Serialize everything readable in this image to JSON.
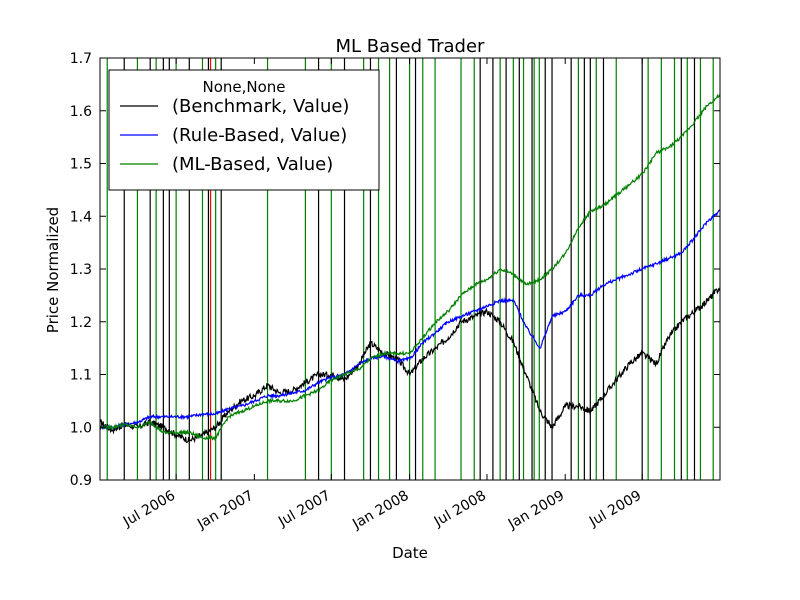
{
  "chart_data": {
    "type": "line",
    "title": "ML Based Trader",
    "xlabel": "Date",
    "ylabel": "Price Normalized",
    "xlim": [
      "2006-01-03",
      "2009-12-31"
    ],
    "ylim": [
      0.9,
      1.7
    ],
    "yticks": [
      "0.9",
      "1.0",
      "1.1",
      "1.2",
      "1.3",
      "1.4",
      "1.5",
      "1.6",
      "1.7"
    ],
    "xticks": [
      {
        "date": "2006-07-01",
        "label": "Jul 2006"
      },
      {
        "date": "2007-01-01",
        "label": "Jan 2007"
      },
      {
        "date": "2007-07-01",
        "label": "Jul 2007"
      },
      {
        "date": "2008-01-01",
        "label": "Jan 2008"
      },
      {
        "date": "2008-07-01",
        "label": "Jul 2008"
      },
      {
        "date": "2009-01-01",
        "label": "Jan 2009"
      },
      {
        "date": "2009-07-01",
        "label": "Jul 2009"
      }
    ],
    "grid": false,
    "legend": {
      "title": "None,None",
      "placement": "upper-left"
    },
    "series": [
      {
        "name": "(Benchmark, Value)",
        "color": "#000000",
        "points": [
          [
            "2006-01-03",
            1.01
          ],
          [
            "2006-02-01",
            0.995
          ],
          [
            "2006-03-01",
            1.005
          ],
          [
            "2006-04-03",
            1.0
          ],
          [
            "2006-05-01",
            1.01
          ],
          [
            "2006-06-01",
            1.0
          ],
          [
            "2006-07-03",
            0.985
          ],
          [
            "2006-08-01",
            0.975
          ],
          [
            "2006-09-01",
            0.985
          ],
          [
            "2006-10-02",
            1.0
          ],
          [
            "2006-11-01",
            1.03
          ],
          [
            "2006-12-01",
            1.05
          ],
          [
            "2007-01-02",
            1.06
          ],
          [
            "2007-02-01",
            1.08
          ],
          [
            "2007-03-01",
            1.065
          ],
          [
            "2007-04-02",
            1.07
          ],
          [
            "2007-05-01",
            1.085
          ],
          [
            "2007-06-01",
            1.1
          ],
          [
            "2007-07-02",
            1.1
          ],
          [
            "2007-08-01",
            1.09
          ],
          [
            "2007-09-04",
            1.12
          ],
          [
            "2007-10-01",
            1.16
          ],
          [
            "2007-11-01",
            1.14
          ],
          [
            "2007-12-03",
            1.13
          ],
          [
            "2008-01-02",
            1.1
          ],
          [
            "2008-02-01",
            1.13
          ],
          [
            "2008-03-03",
            1.15
          ],
          [
            "2008-04-01",
            1.17
          ],
          [
            "2008-05-01",
            1.2
          ],
          [
            "2008-06-02",
            1.21
          ],
          [
            "2008-07-01",
            1.22
          ],
          [
            "2008-08-01",
            1.2
          ],
          [
            "2008-09-02",
            1.16
          ],
          [
            "2008-10-01",
            1.1
          ],
          [
            "2008-11-03",
            1.03
          ],
          [
            "2008-12-01",
            1.0
          ],
          [
            "2009-01-02",
            1.04
          ],
          [
            "2009-02-02",
            1.04
          ],
          [
            "2009-03-02",
            1.03
          ],
          [
            "2009-04-01",
            1.06
          ],
          [
            "2009-05-01",
            1.09
          ],
          [
            "2009-06-01",
            1.12
          ],
          [
            "2009-07-01",
            1.14
          ],
          [
            "2009-08-03",
            1.12
          ],
          [
            "2009-09-01",
            1.17
          ],
          [
            "2009-10-01",
            1.2
          ],
          [
            "2009-11-02",
            1.22
          ],
          [
            "2009-12-01",
            1.24
          ],
          [
            "2009-12-31",
            1.265
          ]
        ]
      },
      {
        "name": "(Rule-Based, Value)",
        "color": "#0000ff",
        "points": [
          [
            "2006-01-03",
            1.0
          ],
          [
            "2006-02-01",
            1.0
          ],
          [
            "2006-03-01",
            1.005
          ],
          [
            "2006-04-03",
            1.01
          ],
          [
            "2006-05-01",
            1.02
          ],
          [
            "2006-06-01",
            1.02
          ],
          [
            "2006-07-03",
            1.02
          ],
          [
            "2006-08-01",
            1.02
          ],
          [
            "2006-09-01",
            1.025
          ],
          [
            "2006-10-02",
            1.025
          ],
          [
            "2006-11-01",
            1.035
          ],
          [
            "2006-12-01",
            1.04
          ],
          [
            "2007-01-02",
            1.05
          ],
          [
            "2007-02-01",
            1.06
          ],
          [
            "2007-03-01",
            1.06
          ],
          [
            "2007-04-02",
            1.065
          ],
          [
            "2007-05-01",
            1.07
          ],
          [
            "2007-06-01",
            1.085
          ],
          [
            "2007-07-02",
            1.095
          ],
          [
            "2007-08-01",
            1.1
          ],
          [
            "2007-09-04",
            1.12
          ],
          [
            "2007-10-01",
            1.13
          ],
          [
            "2007-11-01",
            1.135
          ],
          [
            "2007-12-03",
            1.125
          ],
          [
            "2008-01-02",
            1.13
          ],
          [
            "2008-02-01",
            1.16
          ],
          [
            "2008-03-03",
            1.18
          ],
          [
            "2008-04-01",
            1.2
          ],
          [
            "2008-05-01",
            1.21
          ],
          [
            "2008-06-02",
            1.22
          ],
          [
            "2008-07-01",
            1.23
          ],
          [
            "2008-08-01",
            1.24
          ],
          [
            "2008-09-02",
            1.24
          ],
          [
            "2008-10-01",
            1.19
          ],
          [
            "2008-11-03",
            1.15
          ],
          [
            "2008-12-01",
            1.21
          ],
          [
            "2009-01-02",
            1.22
          ],
          [
            "2009-02-02",
            1.25
          ],
          [
            "2009-03-02",
            1.25
          ],
          [
            "2009-04-01",
            1.27
          ],
          [
            "2009-05-01",
            1.28
          ],
          [
            "2009-06-01",
            1.29
          ],
          [
            "2009-07-01",
            1.3
          ],
          [
            "2009-08-03",
            1.31
          ],
          [
            "2009-09-01",
            1.32
          ],
          [
            "2009-10-01",
            1.33
          ],
          [
            "2009-11-02",
            1.36
          ],
          [
            "2009-12-01",
            1.39
          ],
          [
            "2009-12-31",
            1.41
          ]
        ]
      },
      {
        "name": "(ML-Based, Value)",
        "color": "#008000",
        "points": [
          [
            "2006-01-03",
            1.0
          ],
          [
            "2006-02-01",
            1.0
          ],
          [
            "2006-03-01",
            1.005
          ],
          [
            "2006-04-03",
            1.0
          ],
          [
            "2006-05-01",
            1.01
          ],
          [
            "2006-06-01",
            0.99
          ],
          [
            "2006-07-03",
            0.99
          ],
          [
            "2006-08-01",
            0.99
          ],
          [
            "2006-09-01",
            0.98
          ],
          [
            "2006-10-02",
            0.98
          ],
          [
            "2006-11-01",
            1.02
          ],
          [
            "2006-12-01",
            1.03
          ],
          [
            "2007-01-02",
            1.04
          ],
          [
            "2007-02-01",
            1.05
          ],
          [
            "2007-03-01",
            1.05
          ],
          [
            "2007-04-02",
            1.05
          ],
          [
            "2007-05-01",
            1.06
          ],
          [
            "2007-06-01",
            1.07
          ],
          [
            "2007-07-02",
            1.09
          ],
          [
            "2007-08-01",
            1.1
          ],
          [
            "2007-09-04",
            1.11
          ],
          [
            "2007-10-01",
            1.13
          ],
          [
            "2007-11-01",
            1.14
          ],
          [
            "2007-12-03",
            1.14
          ],
          [
            "2008-01-02",
            1.14
          ],
          [
            "2008-02-01",
            1.17
          ],
          [
            "2008-03-03",
            1.2
          ],
          [
            "2008-04-01",
            1.22
          ],
          [
            "2008-05-01",
            1.25
          ],
          [
            "2008-06-02",
            1.27
          ],
          [
            "2008-07-01",
            1.28
          ],
          [
            "2008-08-01",
            1.3
          ],
          [
            "2008-09-02",
            1.29
          ],
          [
            "2008-10-01",
            1.27
          ],
          [
            "2008-11-03",
            1.28
          ],
          [
            "2008-12-01",
            1.3
          ],
          [
            "2009-01-02",
            1.33
          ],
          [
            "2009-02-02",
            1.38
          ],
          [
            "2009-03-02",
            1.41
          ],
          [
            "2009-04-01",
            1.42
          ],
          [
            "2009-05-01",
            1.44
          ],
          [
            "2009-06-01",
            1.46
          ],
          [
            "2009-07-01",
            1.48
          ],
          [
            "2009-08-03",
            1.52
          ],
          [
            "2009-09-01",
            1.53
          ],
          [
            "2009-10-01",
            1.55
          ],
          [
            "2009-11-02",
            1.58
          ],
          [
            "2009-12-01",
            1.61
          ],
          [
            "2009-12-31",
            1.63
          ]
        ]
      }
    ],
    "vlines": {
      "black": [
        "2006-03-01",
        "2006-05-01",
        "2006-06-01",
        "2006-06-15",
        "2006-08-01",
        "2006-09-15",
        "2006-10-15",
        "2007-06-01",
        "2007-08-01",
        "2007-10-01",
        "2007-12-01",
        "2008-01-15",
        "2008-06-15",
        "2008-07-15",
        "2008-08-15",
        "2008-09-15",
        "2008-10-15",
        "2008-11-15",
        "2008-12-01",
        "2009-01-15",
        "2009-02-15",
        "2009-03-01",
        "2009-04-01",
        "2009-07-01",
        "2009-10-01",
        "2009-11-01"
      ],
      "green": [
        "2006-01-20",
        "2006-04-01",
        "2006-05-15",
        "2006-07-01",
        "2006-09-01",
        "2006-10-02",
        "2007-02-01",
        "2007-05-01",
        "2007-07-01",
        "2007-09-15",
        "2007-10-20",
        "2007-11-15",
        "2008-01-01",
        "2008-02-01",
        "2008-03-01",
        "2008-05-01",
        "2008-06-01",
        "2008-08-01",
        "2008-09-01",
        "2008-09-25",
        "2008-10-20",
        "2008-11-01",
        "2009-02-01",
        "2009-03-15",
        "2009-05-01",
        "2009-07-15",
        "2009-08-15",
        "2009-09-15",
        "2009-10-15",
        "2009-11-15",
        "2009-12-15"
      ],
      "red": [
        "2006-09-20"
      ]
    }
  }
}
